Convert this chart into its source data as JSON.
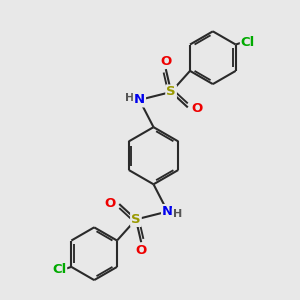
{
  "bg_color": "#e8e8e8",
  "bond_color": "#2a2a2a",
  "bond_width": 1.5,
  "dbo": 0.06,
  "atom_colors": {
    "N": "#0000ee",
    "S": "#999900",
    "O": "#ee0000",
    "Cl": "#00aa00",
    "H": "#555555",
    "C": "#2a2a2a"
  },
  "fs": 9.5,
  "fss": 8.0
}
